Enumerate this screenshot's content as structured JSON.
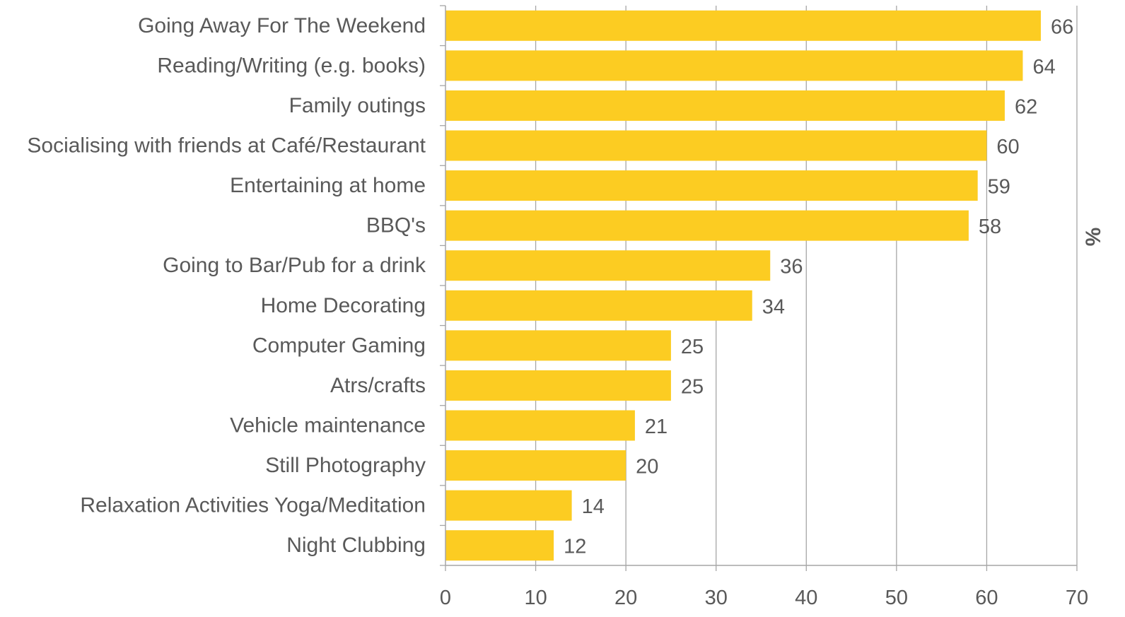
{
  "chart_data": {
    "type": "bar",
    "orientation": "horizontal",
    "categories": [
      "Going Away For The Weekend",
      "Reading/Writing (e.g. books)",
      "Family outings",
      "Socialising with friends at Café/Restaurant",
      "Entertaining at home ",
      "BBQ's",
      "Going to Bar/Pub for a drink",
      "Home Decorating",
      "Computer Gaming",
      "Atrs/crafts",
      "Vehicle maintenance",
      "Still Photography",
      "Relaxation Activities Yoga/Meditation",
      "Night Clubbing"
    ],
    "values": [
      66,
      64,
      62,
      60,
      59,
      58,
      36,
      34,
      25,
      25,
      21,
      20,
      14,
      12
    ],
    "xlim": [
      0,
      70
    ],
    "xticks": [
      "0",
      "10",
      "20",
      "30",
      "40",
      "50",
      "60",
      "70"
    ],
    "unit_label": "%",
    "grid": true,
    "data_labels": true,
    "colors": {
      "bar": "#FCCC22",
      "grid": "#A6A6A6",
      "text": "#595959"
    }
  }
}
